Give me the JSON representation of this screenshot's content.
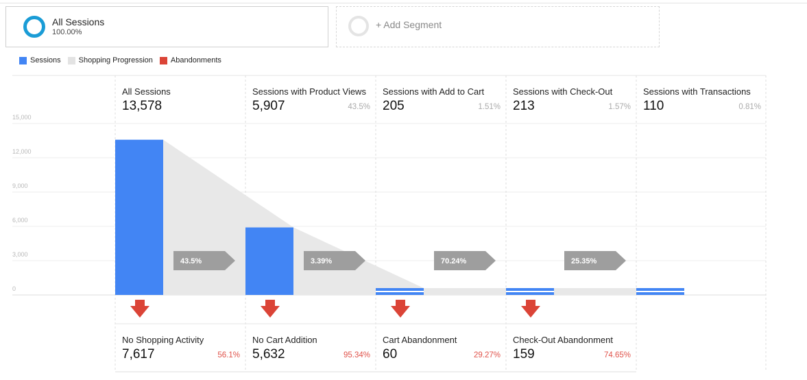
{
  "segments": {
    "active": {
      "name": "All Sessions",
      "percent": "100.00%"
    },
    "add_label": "+ Add Segment"
  },
  "legend": [
    {
      "label": "Sessions",
      "color": "#4285f4"
    },
    {
      "label": "Shopping Progression",
      "color": "#e3e3e3"
    },
    {
      "label": "Abandonments",
      "color": "#db4437"
    }
  ],
  "chart_data": {
    "type": "bar",
    "categories": [
      "All Sessions",
      "Sessions with Product Views",
      "Sessions with Add to Cart",
      "Sessions with Check-Out",
      "Sessions with Transactions"
    ],
    "values": [
      13578,
      5907,
      205,
      213,
      110
    ],
    "value_labels": [
      "13,578",
      "5,907",
      "205",
      "213",
      "110"
    ],
    "percents": [
      "",
      "43.5%",
      "1.51%",
      "1.57%",
      "0.81%"
    ],
    "progression": [
      "43.5%",
      "3.39%",
      "70.24%",
      "25.35%"
    ],
    "abandonments": [
      {
        "name": "No Shopping Activity",
        "value": "7,617",
        "percent": "56.1%"
      },
      {
        "name": "No Cart Addition",
        "value": "5,632",
        "percent": "95.34%"
      },
      {
        "name": "Cart Abandonment",
        "value": "60",
        "percent": "29.27%"
      },
      {
        "name": "Check-Out Abandonment",
        "value": "159",
        "percent": "74.65%"
      }
    ],
    "yticks": [
      "0",
      "3,000",
      "6,000",
      "9,000",
      "12,000",
      "15,000"
    ],
    "ylim": [
      0,
      15000
    ],
    "grid": true,
    "legend_position": "top-left"
  }
}
